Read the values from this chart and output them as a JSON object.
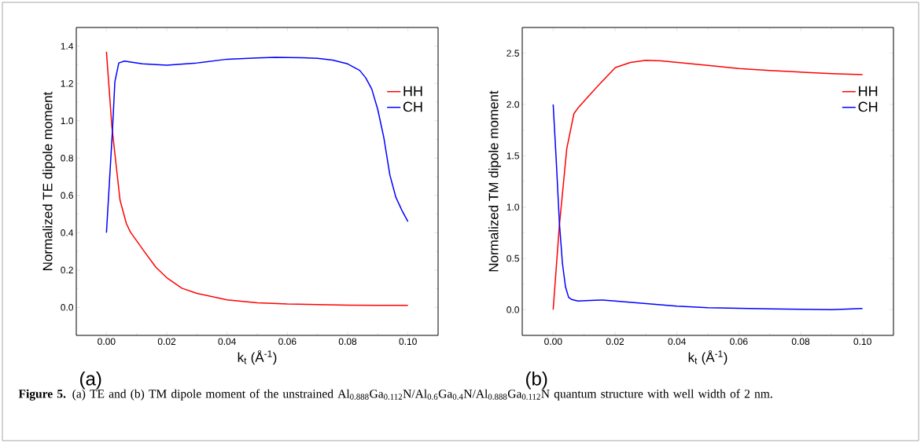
{
  "chart_data": [
    {
      "type": "line",
      "xlabel": "k$_{t}$ (Å$^{-1}$)",
      "ylabel": "Normalized TE dipole moment",
      "annotations": [
        "(a)",
        "**Figure 5.** (a) TE and (b) TM dipole moment of the unstrained Al$_{0.888}$Ga$_{0.112}$N/Al$_{0.6}$Ga$_{0.4}$N/Al$_{0.888}$Ga$_{0.112}$N quantum structure with well width of 2 nm."
      ],
      "xlim": [
        -0.01,
        0.11
      ],
      "ylim": [
        -0.15,
        1.5
      ],
      "xticks": [
        {
          "value": 0,
          "label": "0.00"
        },
        {
          "value": 0.02,
          "label": "0.02"
        },
        {
          "value": 0.04,
          "label": "0.04"
        },
        {
          "value": 0.06,
          "label": "0.06"
        },
        {
          "value": 0.08,
          "label": "0.08"
        },
        {
          "value": 0.1,
          "label": "0.10"
        }
      ],
      "yticks": [
        {
          "value": 0,
          "label": "0.0"
        },
        {
          "value": 0.2,
          "label": "0.2"
        },
        {
          "value": 0.4,
          "label": "0.4"
        },
        {
          "value": 0.6,
          "label": "0.6"
        },
        {
          "value": 0.8,
          "label": "0.8"
        },
        {
          "value": 1.0,
          "label": "1.0"
        },
        {
          "value": 1.2,
          "label": "1.2"
        },
        {
          "value": 1.4,
          "label": "1.4"
        }
      ],
      "legend": "top right",
      "grid": false,
      "marker": "none",
      "line_style": "solid",
      "series": [
        {
          "name": "HH",
          "color": "#ff0000",
          "x": [
            0,
            0.0018,
            0.0045,
            0.0066,
            0.0079,
            0.0122,
            0.0164,
            0.02,
            0.025,
            0.03,
            0.04,
            0.05,
            0.06,
            0.07,
            0.08,
            0.09,
            0.1
          ],
          "values": [
            1.37,
            0.97,
            0.575,
            0.45,
            0.405,
            0.307,
            0.215,
            0.159,
            0.103,
            0.075,
            0.04,
            0.025,
            0.018,
            0.015,
            0.012,
            0.011,
            0.011
          ]
        },
        {
          "name": "CH",
          "color": "#0000ff",
          "x": [
            0,
            0.002,
            0.0028,
            0.0041,
            0.006,
            0.008,
            0.012,
            0.02,
            0.03,
            0.04,
            0.05,
            0.056,
            0.065,
            0.07,
            0.075,
            0.08,
            0.084,
            0.086,
            0.088,
            0.09,
            0.092,
            0.094,
            0.096,
            0.098,
            0.1
          ],
          "values": [
            0.4,
            0.95,
            1.21,
            1.31,
            1.32,
            1.315,
            1.305,
            1.298,
            1.31,
            1.33,
            1.337,
            1.34,
            1.338,
            1.335,
            1.325,
            1.305,
            1.27,
            1.23,
            1.17,
            1.06,
            0.91,
            0.71,
            0.59,
            0.52,
            0.46
          ]
        }
      ]
    },
    {
      "type": "line",
      "xlabel": "k$_{t}$ (Å$^{-1}$)",
      "ylabel": "Normalized TM dipole moment",
      "annotations": [
        "(b)"
      ],
      "xlim": [
        -0.01,
        0.11
      ],
      "ylim": [
        -0.25,
        2.75
      ],
      "xticks": [
        {
          "value": 0,
          "label": "0.00"
        },
        {
          "value": 0.02,
          "label": "0.02"
        },
        {
          "value": 0.04,
          "label": "0.04"
        },
        {
          "value": 0.06,
          "label": "0.06"
        },
        {
          "value": 0.08,
          "label": "0.08"
        },
        {
          "value": 0.1,
          "label": "0.10"
        }
      ],
      "yticks": [
        {
          "value": 0,
          "label": "0.0"
        },
        {
          "value": 0.5,
          "label": "0.5"
        },
        {
          "value": 1.0,
          "label": "1.0"
        },
        {
          "value": 1.5,
          "label": "1.5"
        },
        {
          "value": 2.0,
          "label": "2.0"
        },
        {
          "value": 2.5,
          "label": "2.5"
        }
      ],
      "legend": "top right",
      "grid": false,
      "marker": "none",
      "line_style": "solid",
      "series": [
        {
          "name": "HH",
          "color": "#ff0000",
          "x": [
            0,
            0.002,
            0.0044,
            0.0067,
            0.008,
            0.012,
            0.0155,
            0.0201,
            0.025,
            0.03,
            0.035,
            0.04,
            0.05,
            0.06,
            0.07,
            0.08,
            0.09,
            0.1
          ],
          "values": [
            0,
            0.82,
            1.57,
            1.91,
            1.965,
            2.1,
            2.215,
            2.36,
            2.41,
            2.43,
            2.425,
            2.41,
            2.38,
            2.35,
            2.33,
            2.315,
            2.3,
            2.29
          ]
        },
        {
          "name": "CH",
          "color": "#0000ff",
          "x": [
            0,
            0.001,
            0.002,
            0.003,
            0.004,
            0.005,
            0.006,
            0.008,
            0.012,
            0.016,
            0.02,
            0.03,
            0.04,
            0.05,
            0.06,
            0.07,
            0.08,
            0.09,
            0.1
          ],
          "values": [
            2.0,
            1.45,
            0.85,
            0.45,
            0.22,
            0.12,
            0.1,
            0.085,
            0.09,
            0.095,
            0.085,
            0.06,
            0.035,
            0.02,
            0.013,
            0.008,
            0.004,
            0.0,
            0.012
          ]
        }
      ]
    }
  ]
}
